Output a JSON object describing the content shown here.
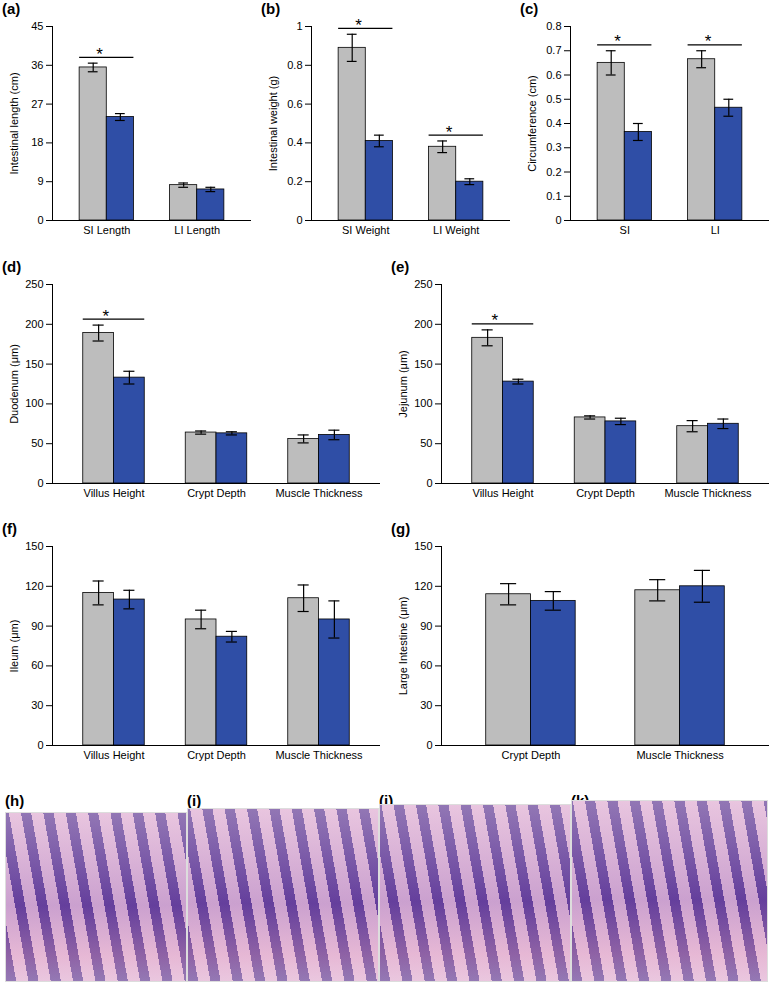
{
  "chart_data": [
    {
      "type": "bar",
      "label": "(a)",
      "y_label": "Intestinal length (cm)",
      "categories": [
        "SI Length",
        "LI Length"
      ],
      "series": [
        {
          "color": "#bdbdbd",
          "values": [
            35.5,
            8.2
          ],
          "errors": [
            1.0,
            0.5
          ]
        },
        {
          "color": "#2f4ea6",
          "values": [
            24.0,
            7.2
          ],
          "errors": [
            0.8,
            0.5
          ]
        }
      ],
      "ylim": [
        0,
        45
      ],
      "yticks": [
        0,
        9,
        18,
        27,
        36,
        45
      ],
      "annotations": [
        {
          "text": "*",
          "category": "SI Length"
        }
      ]
    },
    {
      "type": "bar",
      "label": "(b)",
      "y_label": "Intestinal weight (g)",
      "categories": [
        "SI Weight",
        "LI Weight"
      ],
      "series": [
        {
          "color": "#bdbdbd",
          "values": [
            0.89,
            0.38
          ],
          "errors": [
            0.07,
            0.03
          ]
        },
        {
          "color": "#2f4ea6",
          "values": [
            0.41,
            0.2
          ],
          "errors": [
            0.03,
            0.015
          ]
        }
      ],
      "ylim": [
        0,
        1
      ],
      "yticks": [
        0,
        0.2,
        0.4,
        0.6,
        0.8,
        1
      ],
      "annotations": [
        {
          "text": "*",
          "category": "SI Weight"
        },
        {
          "text": "*",
          "category": "LI Weight"
        }
      ]
    },
    {
      "type": "bar",
      "label": "(c)",
      "y_label": "Circumference (cm)",
      "categories": [
        "SI",
        "LI"
      ],
      "series": [
        {
          "color": "#bdbdbd",
          "values": [
            0.65,
            0.665
          ],
          "errors": [
            0.05,
            0.035
          ]
        },
        {
          "color": "#2f4ea6",
          "values": [
            0.365,
            0.465
          ],
          "errors": [
            0.035,
            0.035
          ]
        }
      ],
      "ylim": [
        0,
        0.8
      ],
      "yticks": [
        0,
        0.1,
        0.2,
        0.3,
        0.4,
        0.5,
        0.6,
        0.7,
        0.8
      ],
      "annotations": [
        {
          "text": "*",
          "category": "SI"
        },
        {
          "text": "*",
          "category": "LI"
        }
      ]
    },
    {
      "type": "bar",
      "label": "(d)",
      "y_label": "Duodenum (μm)",
      "categories": [
        "Villus Height",
        "Crypt Depth",
        "Muscle Thickness"
      ],
      "series": [
        {
          "color": "#bdbdbd",
          "values": [
            189,
            64,
            56
          ],
          "errors": [
            10,
            2,
            5
          ]
        },
        {
          "color": "#2f4ea6",
          "values": [
            133,
            63,
            61
          ],
          "errors": [
            8,
            2,
            6
          ]
        }
      ],
      "ylim": [
        0,
        250
      ],
      "yticks": [
        0,
        50,
        100,
        150,
        200,
        250
      ],
      "annotations": [
        {
          "text": "*",
          "category": "Villus Height"
        }
      ]
    },
    {
      "type": "bar",
      "label": "(e)",
      "y_label": "Jejunum (μm)",
      "categories": [
        "Villus Height",
        "Crypt Depth",
        "Muscle Thickness"
      ],
      "series": [
        {
          "color": "#bdbdbd",
          "values": [
            183,
            83,
            72
          ],
          "errors": [
            10,
            2,
            7
          ]
        },
        {
          "color": "#2f4ea6",
          "values": [
            128,
            78,
            75
          ],
          "errors": [
            3,
            4,
            6
          ]
        }
      ],
      "ylim": [
        0,
        250
      ],
      "yticks": [
        0,
        50,
        100,
        150,
        200,
        250
      ],
      "annotations": [
        {
          "text": "*",
          "category": "Villus Height"
        }
      ]
    },
    {
      "type": "bar",
      "label": "(f)",
      "y_label": "Ileum (μm)",
      "categories": [
        "Villus Height",
        "Crypt Depth",
        "Muscle Thickness"
      ],
      "series": [
        {
          "color": "#bdbdbd",
          "values": [
            115,
            95,
            111
          ],
          "errors": [
            9,
            7,
            10
          ]
        },
        {
          "color": "#2f4ea6",
          "values": [
            110,
            82,
            95
          ],
          "errors": [
            7,
            4,
            14
          ]
        }
      ],
      "ylim": [
        0,
        150
      ],
      "yticks": [
        0,
        30,
        60,
        90,
        120,
        150
      ],
      "annotations": []
    },
    {
      "type": "bar",
      "label": "(g)",
      "y_label": "Large Intestine (μm)",
      "categories": [
        "Crypt Depth",
        "Muscle Thickness"
      ],
      "series": [
        {
          "color": "#bdbdbd",
          "values": [
            114,
            117
          ],
          "errors": [
            8,
            8
          ]
        },
        {
          "color": "#2f4ea6",
          "values": [
            109,
            120
          ],
          "errors": [
            7,
            12
          ]
        }
      ],
      "ylim": [
        0,
        150
      ],
      "yticks": [
        0,
        30,
        60,
        90,
        120,
        150
      ],
      "annotations": []
    }
  ],
  "images": [
    {
      "label": "(h)"
    },
    {
      "label": "(i)"
    },
    {
      "label": "(j)"
    },
    {
      "label": "(k)"
    }
  ]
}
